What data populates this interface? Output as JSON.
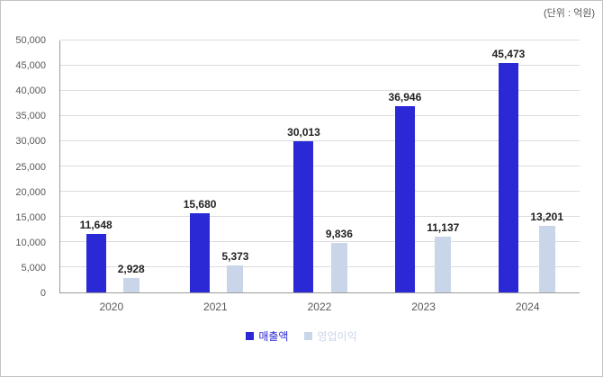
{
  "unit_label": "(단위 : 억원)",
  "chart_data": {
    "type": "bar",
    "title": "",
    "xlabel": "",
    "ylabel": "",
    "categories": [
      "2020",
      "2021",
      "2022",
      "2023",
      "2024"
    ],
    "series": [
      {
        "name": "매출액",
        "color": "#2b29d6",
        "values": [
          11648,
          15680,
          30013,
          36946,
          45473
        ],
        "labels": [
          "11,648",
          "15,680",
          "30,013",
          "36,946",
          "45,473"
        ]
      },
      {
        "name": "영업이익",
        "color": "#c9d6ea",
        "values": [
          2928,
          5373,
          9836,
          11137,
          13201
        ],
        "labels": [
          "2,928",
          "5,373",
          "9,836",
          "11,137",
          "13,201"
        ]
      }
    ],
    "ylim": [
      0,
      50000
    ],
    "ytick_interval": 5000,
    "yticks": [
      "0",
      "5,000",
      "10,000",
      "15,000",
      "20,000",
      "25,000",
      "30,000",
      "35,000",
      "40,000",
      "45,000",
      "50,000"
    ],
    "grid": true,
    "legend_position": "bottom"
  }
}
